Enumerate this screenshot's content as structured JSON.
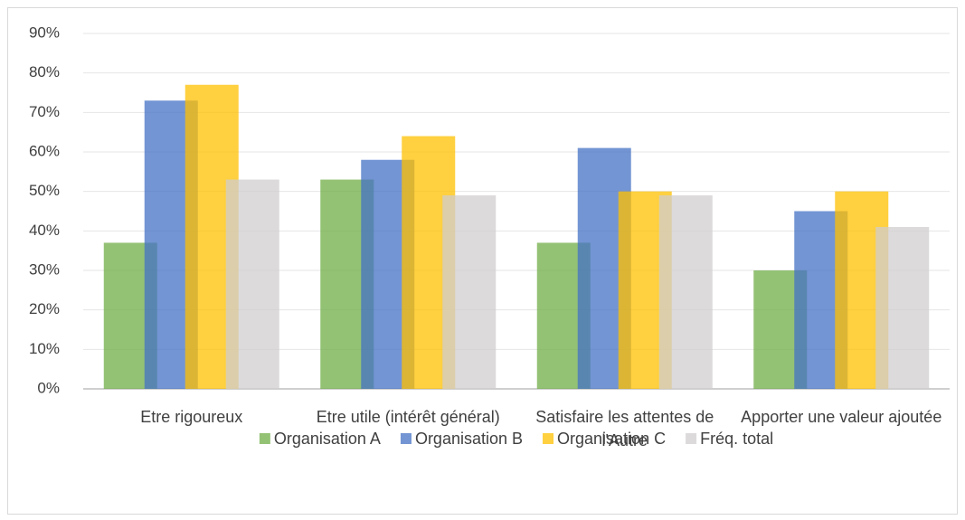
{
  "chart_data": {
    "type": "bar",
    "categories": [
      "Etre rigoureux",
      "Etre utile (intérêt général)",
      "Satisfaire les attentes de l'Autre",
      "Apporter une valeur ajoutée"
    ],
    "series": [
      {
        "name": "Organisation A",
        "color": "#70ad47",
        "values": [
          37,
          53,
          37,
          30
        ]
      },
      {
        "name": "Organisation B",
        "color": "#4472c4",
        "values": [
          73,
          58,
          61,
          45
        ]
      },
      {
        "name": "Organisation C",
        "color": "#ffc000",
        "values": [
          77,
          64,
          50,
          50
        ]
      },
      {
        "name": "Fréq. total",
        "color": "#d0cece",
        "values": [
          53,
          49,
          49,
          41
        ]
      }
    ],
    "ylim": [
      0,
      90
    ],
    "yticks": [
      {
        "value": 0,
        "label": "0%"
      },
      {
        "value": 10,
        "label": "10%"
      },
      {
        "value": 20,
        "label": "20%"
      },
      {
        "value": 30,
        "label": "30%"
      },
      {
        "value": 40,
        "label": "40%"
      },
      {
        "value": 50,
        "label": "50%"
      },
      {
        "value": 60,
        "label": "60%"
      },
      {
        "value": 70,
        "label": "70%"
      },
      {
        "value": 80,
        "label": "80%"
      },
      {
        "value": 90,
        "label": "90%"
      }
    ],
    "grid": true,
    "legend": "bottom"
  }
}
